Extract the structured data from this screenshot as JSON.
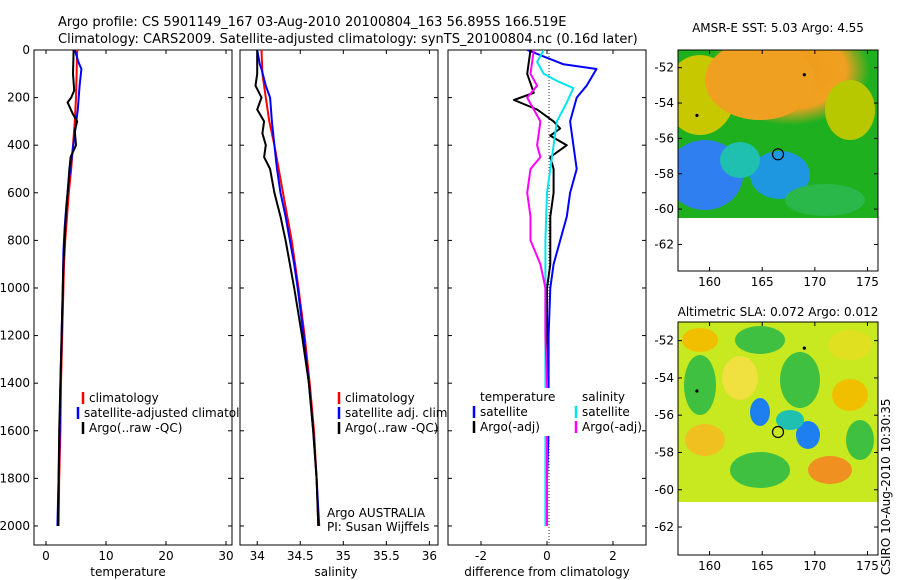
{
  "header": {
    "line1": "Argo profile: CS 5901149_167 03-Aug-2010 20100804_163 56.895S 166.519E",
    "line2": "Climatology: CARS2009. Satellite-adjusted climatology: synTS_20100804.nc (0.16d later)"
  },
  "colors": {
    "climatology": "#ff0000",
    "satellite": "#0000ff",
    "argo": "#000000",
    "satellite_diff_salinity": "#00e5ee",
    "argo_diff_salinity": "#ff00ff"
  },
  "chart_data": [
    {
      "type": "line",
      "id": "temperature",
      "xlabel": "temperature",
      "xlim": [
        -2,
        31
      ],
      "ylim": [
        2080,
        0
      ],
      "xticks": [
        "0",
        "10",
        "20",
        "30"
      ],
      "xtick_values": [
        0,
        10,
        20,
        30
      ],
      "yticks": [
        "0",
        "200",
        "400",
        "600",
        "800",
        "1000",
        "1200",
        "1400",
        "1600",
        "1800",
        "2000"
      ],
      "ytick_values": [
        0,
        200,
        400,
        600,
        800,
        1000,
        1200,
        1400,
        1600,
        1800,
        2000
      ],
      "legend": [
        "climatology",
        "satellite-adjusted climatology",
        "Argo(..raw -QC)"
      ],
      "series": [
        {
          "name": "climatology",
          "color": "#ff0000",
          "points": [
            [
              5.2,
              0
            ],
            [
              5.1,
              100
            ],
            [
              5.0,
              200
            ],
            [
              4.8,
              300
            ],
            [
              4.5,
              400
            ],
            [
              4.2,
              500
            ],
            [
              3.8,
              600
            ],
            [
              3.5,
              700
            ],
            [
              3.2,
              800
            ],
            [
              3.0,
              900
            ],
            [
              2.9,
              1000
            ],
            [
              2.7,
              1200
            ],
            [
              2.5,
              1400
            ],
            [
              2.4,
              1600
            ],
            [
              2.2,
              1800
            ],
            [
              2.1,
              2000
            ]
          ]
        },
        {
          "name": "satellite-adjusted climatology",
          "color": "#0000ff",
          "points": [
            [
              4.8,
              0
            ],
            [
              5.4,
              50
            ],
            [
              5.9,
              80
            ],
            [
              5.6,
              150
            ],
            [
              5.3,
              250
            ],
            [
              4.8,
              350
            ],
            [
              4.3,
              450
            ],
            [
              3.8,
              550
            ],
            [
              3.4,
              650
            ],
            [
              3.1,
              750
            ],
            [
              2.9,
              850
            ],
            [
              2.8,
              1000
            ],
            [
              2.6,
              1200
            ],
            [
              2.4,
              1400
            ],
            [
              2.3,
              1600
            ],
            [
              2.1,
              1800
            ],
            [
              1.9,
              2000
            ]
          ]
        },
        {
          "name": "Argo(..raw -QC)",
          "color": "#000000",
          "points": [
            [
              4.6,
              0
            ],
            [
              4.5,
              100
            ],
            [
              4.7,
              170
            ],
            [
              4.2,
              200
            ],
            [
              3.6,
              220
            ],
            [
              4.5,
              270
            ],
            [
              5.2,
              300
            ],
            [
              4.8,
              340
            ],
            [
              5.0,
              400
            ],
            [
              4.1,
              450
            ],
            [
              3.9,
              500
            ],
            [
              3.6,
              600
            ],
            [
              3.3,
              700
            ],
            [
              3.1,
              800
            ],
            [
              2.9,
              900
            ],
            [
              2.8,
              1000
            ],
            [
              2.6,
              1200
            ],
            [
              2.4,
              1400
            ],
            [
              2.2,
              1600
            ],
            [
              2.1,
              1800
            ],
            [
              2.0,
              2000
            ]
          ]
        }
      ]
    },
    {
      "type": "line",
      "id": "salinity",
      "xlabel": "salinity",
      "xlim": [
        33.8,
        36.1
      ],
      "ylim": [
        2080,
        0
      ],
      "xticks": [
        "34",
        "34.5",
        "35",
        "35.5",
        "36"
      ],
      "xtick_values": [
        34,
        34.5,
        35,
        35.5,
        36
      ],
      "yticks": [],
      "ytick_values": [
        0,
        200,
        400,
        600,
        800,
        1000,
        1200,
        1400,
        1600,
        1800,
        2000
      ],
      "legend": [
        "climatology",
        "satellite adj. clim.",
        "Argo(..raw -QC)"
      ],
      "annotation": [
        "Argo AUSTRALIA",
        "PI: Susan Wijffels"
      ],
      "series": [
        {
          "name": "climatology",
          "color": "#ff0000",
          "points": [
            [
              34.05,
              0
            ],
            [
              34.06,
              100
            ],
            [
              34.1,
              200
            ],
            [
              34.14,
              300
            ],
            [
              34.2,
              400
            ],
            [
              34.25,
              500
            ],
            [
              34.3,
              600
            ],
            [
              34.35,
              700
            ],
            [
              34.4,
              800
            ],
            [
              34.44,
              900
            ],
            [
              34.48,
              1000
            ],
            [
              34.55,
              1200
            ],
            [
              34.61,
              1400
            ],
            [
              34.66,
              1600
            ],
            [
              34.69,
              1800
            ],
            [
              34.71,
              2000
            ]
          ]
        },
        {
          "name": "satellite adj. clim.",
          "color": "#0000ff",
          "points": [
            [
              34.0,
              0
            ],
            [
              34.03,
              60
            ],
            [
              34.05,
              80
            ],
            [
              34.1,
              150
            ],
            [
              34.15,
              200
            ],
            [
              34.17,
              300
            ],
            [
              34.2,
              400
            ],
            [
              34.23,
              500
            ],
            [
              34.27,
              600
            ],
            [
              34.33,
              700
            ],
            [
              34.38,
              800
            ],
            [
              34.43,
              900
            ],
            [
              34.47,
              1000
            ],
            [
              34.54,
              1200
            ],
            [
              34.6,
              1400
            ],
            [
              34.65,
              1600
            ],
            [
              34.69,
              1800
            ],
            [
              34.72,
              2000
            ]
          ]
        },
        {
          "name": "Argo(..raw -QC)",
          "color": "#000000",
          "points": [
            [
              34.0,
              0
            ],
            [
              34.0,
              100
            ],
            [
              33.98,
              150
            ],
            [
              34.05,
              200
            ],
            [
              34.0,
              250
            ],
            [
              34.08,
              300
            ],
            [
              34.06,
              350
            ],
            [
              34.1,
              400
            ],
            [
              34.08,
              450
            ],
            [
              34.15,
              500
            ],
            [
              34.2,
              600
            ],
            [
              34.27,
              700
            ],
            [
              34.33,
              800
            ],
            [
              34.38,
              900
            ],
            [
              34.43,
              1000
            ],
            [
              34.52,
              1200
            ],
            [
              34.6,
              1400
            ],
            [
              34.65,
              1600
            ],
            [
              34.69,
              1800
            ],
            [
              34.71,
              2000
            ]
          ]
        }
      ]
    },
    {
      "type": "line",
      "id": "difference",
      "xlabel": "difference from climatology",
      "xlim": [
        -3,
        3
      ],
      "ylim": [
        2080,
        0
      ],
      "xticks": [
        "-2",
        "0",
        "2"
      ],
      "xtick_values": [
        -2,
        0,
        2
      ],
      "yticks": [],
      "ytick_values": [
        0,
        200,
        400,
        600,
        800,
        1000,
        1200,
        1400,
        1600,
        1800,
        2000
      ],
      "legend_temperature": {
        "title": "temperature",
        "items": [
          "satellite",
          "Argo(-adj)"
        ]
      },
      "legend_salinity": {
        "title": "salinity",
        "items": [
          "satellite",
          "Argo(-adj)"
        ]
      },
      "series": [
        {
          "name": "temperature satellite",
          "color": "#0000ff",
          "points": [
            [
              -0.6,
              0
            ],
            [
              0.5,
              60
            ],
            [
              1.5,
              80
            ],
            [
              1.2,
              150
            ],
            [
              0.9,
              200
            ],
            [
              0.7,
              300
            ],
            [
              0.8,
              400
            ],
            [
              0.9,
              500
            ],
            [
              0.7,
              600
            ],
            [
              0.6,
              700
            ],
            [
              0.4,
              800
            ],
            [
              0.2,
              900
            ],
            [
              0.1,
              1000
            ],
            [
              0.05,
              1200
            ],
            [
              0.05,
              1400
            ],
            [
              0.05,
              1600
            ],
            [
              0.0,
              1800
            ],
            [
              0.0,
              2000
            ]
          ]
        },
        {
          "name": "temperature Argo(-adj)",
          "color": "#000000",
          "points": [
            [
              -0.5,
              0
            ],
            [
              -0.6,
              100
            ],
            [
              -0.4,
              180
            ],
            [
              -1.0,
              210
            ],
            [
              -0.3,
              250
            ],
            [
              0.2,
              300
            ],
            [
              0.4,
              330
            ],
            [
              0.1,
              360
            ],
            [
              0.6,
              400
            ],
            [
              0.1,
              450
            ],
            [
              0.2,
              500
            ],
            [
              0.2,
              600
            ],
            [
              0.1,
              700
            ],
            [
              0.1,
              800
            ],
            [
              0.1,
              900
            ],
            [
              0.0,
              1000
            ],
            [
              0.0,
              1200
            ],
            [
              0.0,
              1400
            ],
            [
              0.0,
              1600
            ],
            [
              0.0,
              1800
            ],
            [
              0.0,
              2000
            ]
          ]
        },
        {
          "name": "salinity satellite",
          "color": "#00e5ee",
          "points": [
            [
              -0.1,
              0
            ],
            [
              -0.3,
              50
            ],
            [
              -0.1,
              100
            ],
            [
              0.3,
              130
            ],
            [
              0.8,
              160
            ],
            [
              0.6,
              220
            ],
            [
              0.3,
              300
            ],
            [
              0.2,
              400
            ],
            [
              0.1,
              500
            ],
            [
              0.0,
              600
            ],
            [
              -0.05,
              800
            ],
            [
              -0.05,
              1000
            ],
            [
              -0.05,
              1200
            ],
            [
              -0.05,
              1400
            ],
            [
              -0.05,
              1600
            ],
            [
              -0.05,
              1800
            ],
            [
              -0.05,
              2000
            ]
          ]
        },
        {
          "name": "salinity Argo(-adj)",
          "color": "#ff00ff",
          "points": [
            [
              -0.4,
              0
            ],
            [
              -0.5,
              100
            ],
            [
              -0.3,
              150
            ],
            [
              -0.6,
              200
            ],
            [
              -0.4,
              250
            ],
            [
              -0.2,
              300
            ],
            [
              -0.3,
              400
            ],
            [
              -0.2,
              450
            ],
            [
              -0.5,
              500
            ],
            [
              -0.6,
              600
            ],
            [
              -0.5,
              700
            ],
            [
              -0.5,
              800
            ],
            [
              -0.2,
              900
            ],
            [
              -0.05,
              1000
            ],
            [
              -0.05,
              1200
            ],
            [
              0.0,
              1400
            ],
            [
              0.0,
              1600
            ],
            [
              0.0,
              1800
            ],
            [
              0.0,
              2000
            ]
          ]
        }
      ]
    },
    {
      "type": "heatmap",
      "id": "sst_map",
      "title": "AMSR-E SST: 5.03 Argo: 4.55",
      "xlim": [
        157,
        176
      ],
      "ylim": [
        -63.5,
        -51
      ],
      "xticks": [
        "160",
        "165",
        "170",
        "175"
      ],
      "xtick_values": [
        160,
        165,
        170,
        175
      ],
      "yticks": [
        "-52",
        "-54",
        "-56",
        "-58",
        "-60",
        "-62"
      ],
      "ytick_values": [
        -52,
        -54,
        -56,
        -58,
        -60,
        -62
      ],
      "data_limit_lat": -60,
      "marker_circle": [
        166.5,
        -56.9
      ],
      "dots": [
        [
          169,
          -52.4
        ],
        [
          158.8,
          -54.7
        ]
      ]
    },
    {
      "type": "heatmap",
      "id": "sla_map",
      "title": "Altimetric SLA: 0.072 Argo: 0.012",
      "xlim": [
        157,
        176
      ],
      "ylim": [
        -63.5,
        -51
      ],
      "xticks": [
        "160",
        "165",
        "170",
        "175"
      ],
      "xtick_values": [
        160,
        165,
        170,
        175
      ],
      "yticks": [
        "-52",
        "-54",
        "-56",
        "-58",
        "-60",
        "-62"
      ],
      "ytick_values": [
        -52,
        -54,
        -56,
        -58,
        -60,
        -62
      ],
      "data_limit_lat": -60,
      "marker_circle": [
        166.5,
        -56.9
      ],
      "dots": [
        [
          169,
          -52.4
        ],
        [
          158.8,
          -54.7
        ]
      ]
    }
  ],
  "credit": "CSIRO 10-Aug-2010 10:30:35"
}
